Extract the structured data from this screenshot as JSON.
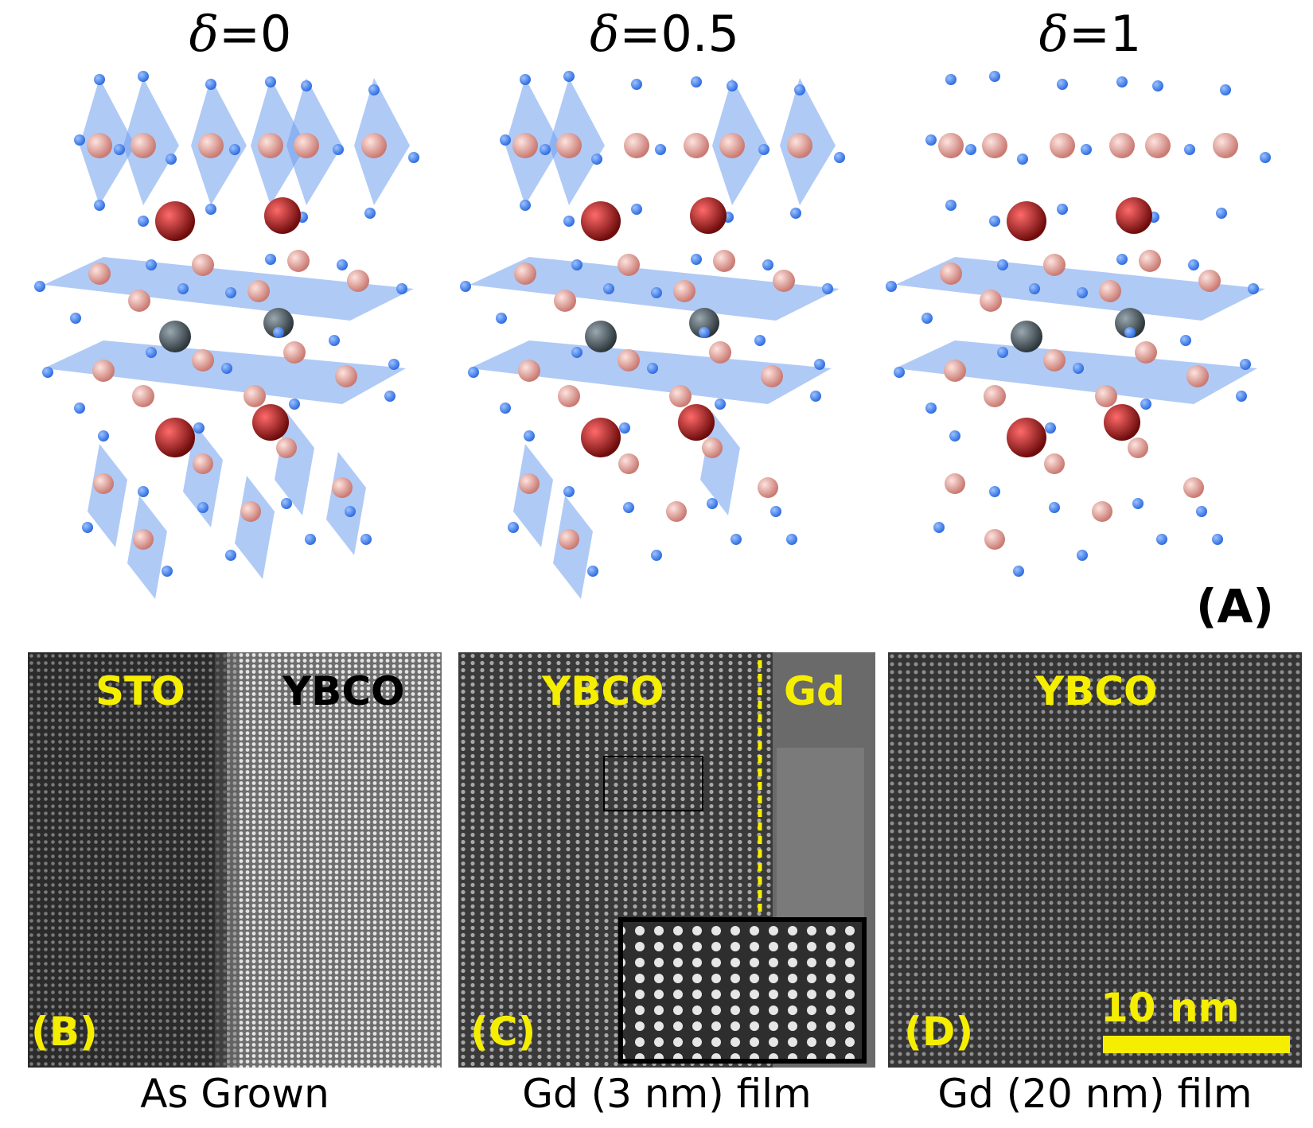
{
  "structures": [
    {
      "delta_symbol": "δ",
      "delta_value": "=0"
    },
    {
      "delta_symbol": "δ",
      "delta_value": "=0.5"
    },
    {
      "delta_symbol": "δ",
      "delta_value": "=1"
    }
  ],
  "panel_a_label": "(A)",
  "tem_panels": [
    {
      "labels": [
        "STO",
        "YBCO"
      ],
      "panel_letter": "(B)",
      "caption": "As Grown"
    },
    {
      "labels": [
        "YBCO",
        "Gd"
      ],
      "panel_letter": "(C)",
      "caption": "Gd (3 nm) film"
    },
    {
      "labels": [
        "YBCO"
      ],
      "panel_letter": "(D)",
      "caption": "Gd (20 nm) film",
      "scale_bar": "10 nm"
    }
  ],
  "colors": {
    "oxygen": "#2f6de0",
    "copper": "#f3a9a2",
    "yttrium_barium": "#c81e1e",
    "center_atom": "#5b6870",
    "plane": "#6f9fee",
    "label_yellow": "#f5ee00"
  }
}
